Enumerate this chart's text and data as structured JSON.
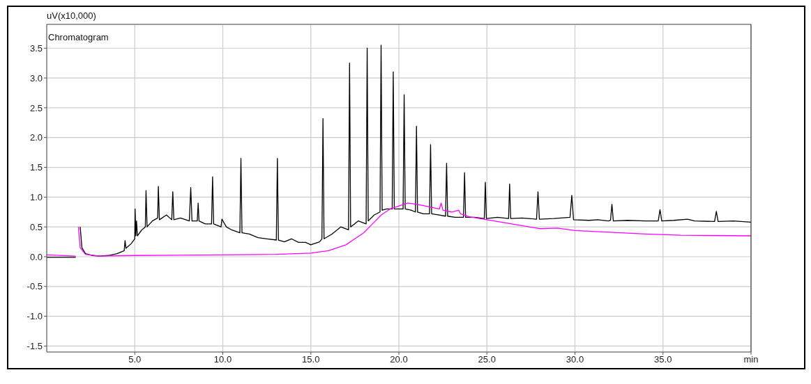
{
  "chart_data": {
    "type": "line",
    "title": "Chromatogram",
    "ylabel": "uV(x10,000)",
    "xlim": [
      0,
      40
    ],
    "ylim": [
      -1.6,
      3.9
    ],
    "xticks": [
      {
        "value": 5,
        "label": "5.0"
      },
      {
        "value": 10,
        "label": "10.0"
      },
      {
        "value": 15,
        "label": "15.0"
      },
      {
        "value": 20,
        "label": "20.0"
      },
      {
        "value": 25,
        "label": "25.0"
      },
      {
        "value": 30,
        "label": "30.0"
      },
      {
        "value": 35,
        "label": "35.0"
      },
      {
        "value": 40,
        "label": "min"
      }
    ],
    "yticks": [
      {
        "value": -1.5,
        "label": "-1.5"
      },
      {
        "value": -1,
        "label": "-1.0"
      },
      {
        "value": -0.5,
        "label": "-0.5"
      },
      {
        "value": 0,
        "label": "0.0"
      },
      {
        "value": 0.5,
        "label": "0.5"
      },
      {
        "value": 1,
        "label": "1.0"
      },
      {
        "value": 1.5,
        "label": "1.5"
      },
      {
        "value": 2,
        "label": "2.0"
      },
      {
        "value": 2.5,
        "label": "2.5"
      },
      {
        "value": 3,
        "label": "3.0"
      },
      {
        "value": 3.5,
        "label": "3.5"
      }
    ],
    "grid": true,
    "marker": "none",
    "line_style": "solid",
    "series": [
      {
        "color": "#000000",
        "x": [
          0,
          1.65,
          1.7,
          1.8,
          1.9,
          2.0,
          2.2,
          2.6,
          3.0,
          3.5,
          4.0,
          4.4,
          4.45,
          4.5,
          4.8,
          5.0,
          5.02,
          5.06,
          5.1,
          5.15,
          5.4,
          5.6,
          5.64,
          5.7,
          6.0,
          6.3,
          6.34,
          6.4,
          6.8,
          7.1,
          7.16,
          7.22,
          7.6,
          8.1,
          8.18,
          8.25,
          8.55,
          8.6,
          8.65,
          9.0,
          9.36,
          9.42,
          9.48,
          9.9,
          9.95,
          10.2,
          10.5,
          10.97,
          11.03,
          11.09,
          11.5,
          12.0,
          12.5,
          13.04,
          13.1,
          13.16,
          13.5,
          13.9,
          14.3,
          14.7,
          15.0,
          15.5,
          15.63,
          15.69,
          15.75,
          16.2,
          16.7,
          17.14,
          17.2,
          17.26,
          17.7,
          18.14,
          18.2,
          18.26,
          18.6,
          18.93,
          18.99,
          19.05,
          19.3,
          19.62,
          19.68,
          19.74,
          20.0,
          20.24,
          20.3,
          20.36,
          20.7,
          20.94,
          21.0,
          21.06,
          21.4,
          21.74,
          21.8,
          21.86,
          22.3,
          22.65,
          22.71,
          22.77,
          23.2,
          23.67,
          23.73,
          23.79,
          24.3,
          24.85,
          24.91,
          24.97,
          25.6,
          26.23,
          26.29,
          26.35,
          27.0,
          27.82,
          27.9,
          27.98,
          28.8,
          29.72,
          29.82,
          29.92,
          30.8,
          31.3,
          31.9,
          32.02,
          32.1,
          32.18,
          33.0,
          34.0,
          34.73,
          34.83,
          34.93,
          35.6,
          36.4,
          36.8,
          37.93,
          38.03,
          38.13,
          39.0,
          40.0
        ],
        "values": [
          -0.01,
          -0.01,
          null,
          null,
          0.5,
          0.15,
          0.05,
          0.02,
          0.01,
          0.02,
          0.05,
          0.1,
          0.27,
          0.14,
          0.22,
          0.3,
          0.8,
          0.35,
          0.6,
          0.35,
          0.45,
          0.5,
          1.11,
          0.5,
          0.6,
          0.65,
          1.18,
          0.62,
          0.7,
          0.62,
          1.09,
          0.62,
          0.65,
          0.6,
          1.16,
          0.6,
          0.6,
          0.9,
          0.6,
          0.55,
          0.55,
          1.34,
          0.55,
          0.5,
          0.63,
          0.5,
          0.45,
          0.4,
          1.65,
          0.4,
          0.38,
          0.32,
          0.3,
          0.28,
          1.65,
          0.28,
          0.25,
          0.3,
          0.24,
          0.24,
          0.2,
          0.25,
          0.3,
          2.32,
          0.3,
          0.38,
          0.5,
          0.45,
          3.25,
          0.5,
          0.6,
          0.55,
          3.5,
          0.6,
          0.7,
          0.75,
          3.55,
          0.78,
          0.8,
          0.8,
          3.1,
          0.8,
          0.8,
          0.8,
          2.72,
          0.8,
          0.78,
          0.75,
          2.19,
          0.75,
          0.72,
          0.72,
          1.88,
          0.72,
          0.7,
          0.68,
          1.57,
          0.68,
          0.66,
          0.66,
          1.41,
          0.66,
          0.66,
          0.64,
          1.25,
          0.64,
          0.66,
          0.64,
          1.22,
          0.64,
          0.65,
          0.63,
          1.09,
          0.63,
          0.64,
          0.66,
          1.03,
          0.62,
          0.61,
          0.62,
          0.6,
          0.61,
          0.88,
          0.6,
          0.61,
          0.6,
          0.6,
          0.79,
          0.6,
          0.61,
          0.63,
          0.6,
          0.59,
          0.76,
          0.59,
          0.6,
          0.58
        ]
      },
      {
        "color": "#ff00ff",
        "x": [
          0,
          1.65,
          1.7,
          1.75,
          1.8,
          1.9,
          2.2,
          3.0,
          5.0,
          10.0,
          13.0,
          15.0,
          16.0,
          17.0,
          17.5,
          18.0,
          18.5,
          19.0,
          19.5,
          20.0,
          20.5,
          21.0,
          21.5,
          22.3,
          22.4,
          22.5,
          23.0,
          23.4,
          23.5,
          24.0,
          25.0,
          26.0,
          27.0,
          28.0,
          29.0,
          30.0,
          32.0,
          34.0,
          36.0,
          40.0
        ],
        "values": [
          0.03,
          0.01,
          null,
          null,
          0.5,
          0.15,
          0.04,
          0.01,
          0.02,
          0.03,
          0.04,
          0.06,
          0.1,
          0.2,
          0.3,
          0.4,
          0.55,
          0.7,
          0.8,
          0.85,
          0.9,
          0.88,
          0.85,
          0.8,
          0.9,
          0.78,
          0.75,
          0.78,
          0.72,
          0.67,
          0.62,
          0.57,
          0.52,
          0.47,
          0.48,
          0.44,
          0.41,
          0.38,
          0.36,
          0.35
        ]
      }
    ]
  }
}
